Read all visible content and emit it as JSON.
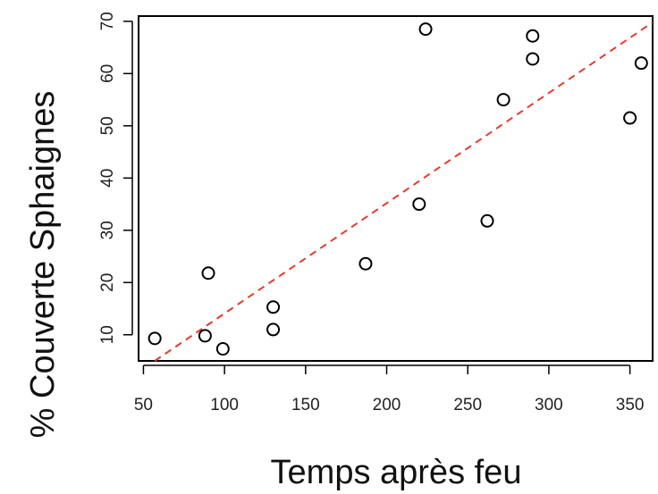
{
  "chart_data": {
    "type": "scatter",
    "xlabel": "Temps après feu",
    "ylabel": "% Couverte Sphaignes",
    "xlim": [
      47,
      364
    ],
    "ylim": [
      5,
      71
    ],
    "x_ticks": [
      50,
      100,
      150,
      200,
      250,
      300,
      350
    ],
    "y_ticks": [
      10,
      20,
      30,
      40,
      50,
      60,
      70
    ],
    "grid": false,
    "legend": "none",
    "points": [
      {
        "x": 57,
        "y": 9.3
      },
      {
        "x": 88,
        "y": 9.8
      },
      {
        "x": 90,
        "y": 21.8
      },
      {
        "x": 99,
        "y": 7.3
      },
      {
        "x": 130,
        "y": 15.3
      },
      {
        "x": 130,
        "y": 11.0
      },
      {
        "x": 187,
        "y": 23.6
      },
      {
        "x": 220,
        "y": 35.0
      },
      {
        "x": 224,
        "y": 68.5
      },
      {
        "x": 262,
        "y": 31.8
      },
      {
        "x": 272,
        "y": 55.0
      },
      {
        "x": 290,
        "y": 67.2
      },
      {
        "x": 290,
        "y": 62.8
      },
      {
        "x": 350,
        "y": 51.5
      },
      {
        "x": 357,
        "y": 62.0
      }
    ],
    "fit_line": {
      "style": "dashed",
      "color": "#e8382b",
      "x": [
        57,
        364
      ],
      "y": [
        5.0,
        69.8
      ]
    },
    "marker_color": "#000000",
    "frame_color": "#000000"
  }
}
